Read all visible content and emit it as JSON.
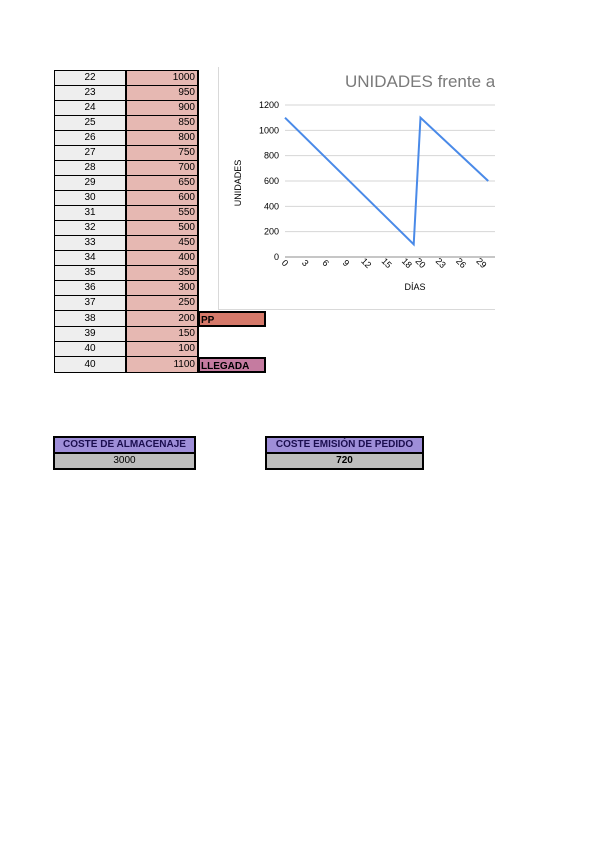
{
  "table": {
    "rows": [
      {
        "day": "22",
        "units": "1000",
        "note": ""
      },
      {
        "day": "23",
        "units": "950",
        "note": ""
      },
      {
        "day": "24",
        "units": "900",
        "note": ""
      },
      {
        "day": "25",
        "units": "850",
        "note": ""
      },
      {
        "day": "26",
        "units": "800",
        "note": ""
      },
      {
        "day": "27",
        "units": "750",
        "note": ""
      },
      {
        "day": "28",
        "units": "700",
        "note": ""
      },
      {
        "day": "29",
        "units": "650",
        "note": ""
      },
      {
        "day": "30",
        "units": "600",
        "note": ""
      },
      {
        "day": "31",
        "units": "550",
        "note": ""
      },
      {
        "day": "32",
        "units": "500",
        "note": ""
      },
      {
        "day": "33",
        "units": "450",
        "note": ""
      },
      {
        "day": "34",
        "units": "400",
        "note": ""
      },
      {
        "day": "35",
        "units": "350",
        "note": ""
      },
      {
        "day": "36",
        "units": "300",
        "note": ""
      },
      {
        "day": "37",
        "units": "250",
        "note": ""
      },
      {
        "day": "38",
        "units": "200",
        "note": "PP"
      },
      {
        "day": "39",
        "units": "150",
        "note": ""
      },
      {
        "day": "40",
        "units": "100",
        "note": ""
      },
      {
        "day": "40",
        "units": "1100",
        "note": "LLEGADA"
      }
    ]
  },
  "summary": {
    "storage_label": "COSTE DE ALMACENAJE",
    "storage_value": "3000",
    "order_label": "COSTE EMISIÓN DE PEDIDO",
    "order_value": "720"
  },
  "colors": {
    "units_fill": "#e6b8b2",
    "pp_fill": "#d5796a",
    "llegada_fill": "#c57ba0",
    "summary_header": "#9e8ed8",
    "line": "#4a8ae8"
  },
  "chart_data": {
    "type": "line",
    "title": "UNIDADES frente a",
    "xlabel": "DÍAS",
    "ylabel": "UNIDADES",
    "xticks": [
      "0",
      "3",
      "6",
      "9",
      "12",
      "15",
      "18",
      "20",
      "23",
      "26",
      "29"
    ],
    "yticks": [
      "0",
      "200",
      "400",
      "600",
      "800",
      "1000",
      "1200"
    ],
    "xlim": [
      0,
      31
    ],
    "ylim": [
      0,
      1200
    ],
    "grid": true,
    "series": [
      {
        "x": [
          0,
          19,
          20,
          30
        ],
        "values": [
          1100,
          100,
          1100,
          600
        ]
      }
    ]
  }
}
